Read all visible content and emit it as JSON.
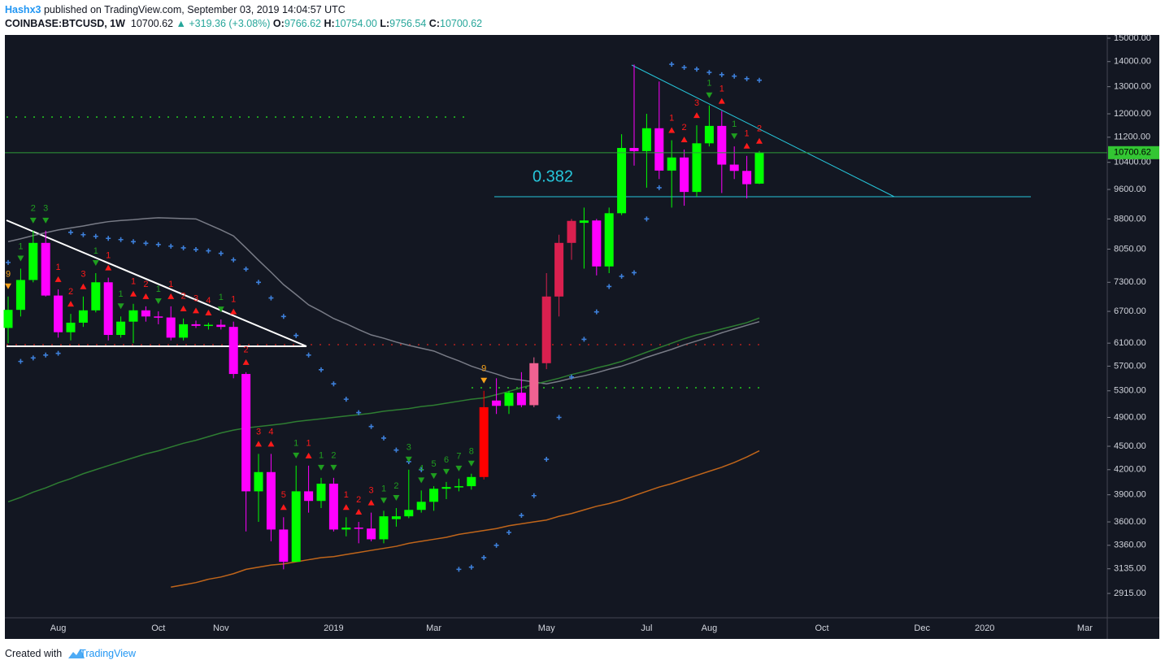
{
  "header": {
    "author": "Hashx3",
    "published": "published on TradingView.com, September 03, 2019 14:04:57 UTC",
    "symbol": "COINBASE:BTCUSD, 1W",
    "last": "10700.62",
    "change": "+319.36 (+3.08%)",
    "o_label": "O:",
    "o": "9766.62",
    "h_label": "H:",
    "h": "10754.00",
    "l_label": "L:",
    "l": "9756.54",
    "c_label": "C:",
    "c": "10700.62"
  },
  "footer": {
    "created": "Created with",
    "brand": "TradingView"
  },
  "chart_data": {
    "type": "candlestick",
    "log_scale": true,
    "grid": false,
    "annotation": "0.382",
    "last_price": 10700.62,
    "categories": [
      null,
      null,
      null,
      null,
      "Aug",
      null,
      null,
      null,
      null,
      null,
      null,
      null,
      "Oct",
      null,
      null,
      null,
      null,
      "Nov",
      null,
      null,
      null,
      null,
      null,
      null,
      null,
      null,
      "2019",
      null,
      null,
      null,
      null,
      null,
      null,
      null,
      "Mar",
      null,
      null,
      null,
      null,
      null,
      null,
      null,
      null,
      "May",
      null,
      null,
      null,
      null,
      null,
      null,
      null,
      "Jul",
      null,
      null,
      null,
      null,
      "Aug",
      null,
      null,
      null,
      null,
      null,
      null,
      null,
      null,
      "Oct",
      null,
      null,
      null,
      null,
      null,
      null,
      null,
      "Dec",
      null,
      null,
      null,
      null,
      "2020",
      null,
      null,
      null,
      null,
      null,
      null,
      null,
      "Mar",
      null
    ],
    "open": [
      6380,
      6730,
      7350,
      8200,
      7020,
      6300,
      6480,
      6720,
      7300,
      6250,
      6500,
      6720,
      6600,
      6580,
      6200,
      6450,
      6420,
      6440,
      6400,
      5570,
      3940,
      4170,
      3520,
      3200,
      3940,
      3830,
      4030,
      3520,
      3540,
      3530,
      3420,
      3630,
      3660,
      3730,
      3820,
      3970,
      3990,
      4000,
      4110,
      5150,
      5070,
      5270,
      5080,
      5750,
      7000,
      8200,
      8700,
      8760,
      7650,
      8950,
      10850,
      10750,
      11500,
      10150,
      10550,
      9530,
      11000,
      11580,
      10330,
      10140,
      9766.62,
      null,
      null,
      null,
      null,
      null,
      null,
      null,
      null,
      null,
      null,
      null,
      null,
      null,
      null,
      null,
      null,
      null,
      null,
      null,
      null,
      null,
      null,
      null,
      null,
      null,
      null,
      null
    ],
    "high": [
      7000,
      7600,
      8500,
      8500,
      7150,
      6650,
      7000,
      7500,
      7400,
      6600,
      6850,
      6800,
      6700,
      6800,
      6560,
      6520,
      6480,
      6540,
      6500,
      5600,
      4400,
      4400,
      3650,
      4250,
      4250,
      4100,
      4100,
      3650,
      3600,
      3700,
      3720,
      3750,
      4200,
      3950,
      4000,
      4050,
      4090,
      4150,
      5300,
      5500,
      5300,
      5600,
      5850,
      7500,
      8400,
      8800,
      9100,
      8800,
      9100,
      11300,
      13880,
      12000,
      13200,
      11100,
      10800,
      11600,
      12300,
      12100,
      10900,
      10600,
      10754,
      null,
      null,
      null,
      null,
      null,
      null,
      null,
      null,
      null,
      null,
      null,
      null,
      null,
      null,
      null,
      null,
      null,
      null,
      null,
      null,
      null,
      null,
      null,
      null,
      null,
      null,
      null
    ],
    "low": [
      6100,
      6600,
      7300,
      7000,
      6200,
      6150,
      6400,
      6680,
      6150,
      6200,
      6100,
      6500,
      6450,
      6150,
      6150,
      6380,
      6350,
      6350,
      5500,
      3500,
      3600,
      3400,
      3130,
      3200,
      3700,
      3750,
      3500,
      3450,
      3380,
      3400,
      3380,
      3550,
      3640,
      3700,
      3720,
      3850,
      3940,
      3960,
      4080,
      4950,
      4950,
      5050,
      5050,
      5650,
      6600,
      7800,
      7600,
      7450,
      7500,
      8900,
      10300,
      9650,
      9900,
      9100,
      9150,
      9400,
      10900,
      9500,
      9900,
      9350,
      9756.54,
      null,
      null,
      null,
      null,
      null,
      null,
      null,
      null,
      null,
      null,
      null,
      null,
      null,
      null,
      null,
      null,
      null,
      null,
      null,
      null,
      null,
      null,
      null,
      null,
      null,
      null,
      null
    ],
    "close": [
      6730,
      7350,
      8200,
      7020,
      6300,
      6480,
      6720,
      7300,
      6250,
      6500,
      6720,
      6600,
      6580,
      6200,
      6450,
      6420,
      6440,
      6400,
      5570,
      3940,
      4170,
      3520,
      3200,
      3940,
      3830,
      4030,
      3520,
      3540,
      3530,
      3420,
      3660,
      3660,
      3730,
      3820,
      3970,
      3990,
      4000,
      4110,
      5050,
      5070,
      5270,
      5080,
      5750,
      7000,
      8200,
      8750,
      8760,
      7650,
      8950,
      10850,
      10750,
      11500,
      10150,
      10550,
      9530,
      11000,
      11580,
      10330,
      10140,
      9750,
      10700.62,
      null,
      null,
      null,
      null,
      null,
      null,
      null,
      null,
      null,
      null,
      null,
      null,
      null,
      null,
      null,
      null,
      null,
      null,
      null,
      null,
      null,
      null,
      null,
      null,
      null,
      null,
      null
    ],
    "candle_colors": [
      "#00ff00",
      "#00ff00",
      "#00ff00",
      "#ff00ff",
      "#ff00ff",
      "#00ff00",
      "#00ff00",
      "#00ff00",
      "#ff00ff",
      "#00ff00",
      "#00ff00",
      "#ff00ff",
      "#ff00ff",
      "#ff00ff",
      "#00ff00",
      "#ff00ff",
      "#00ff00",
      "#ff00ff",
      "#ff00ff",
      "#ff00ff",
      "#00ff00",
      "#ff00ff",
      "#ff00ff",
      "#00ff00",
      "#ff00ff",
      "#00ff00",
      "#ff00ff",
      "#00ff00",
      "#ff00ff",
      "#ff00ff",
      "#00ff00",
      "#00ff00",
      "#00ff00",
      "#00ff00",
      "#00ff00",
      "#00ff00",
      "#00ff00",
      "#00ff00",
      "#ff0000",
      "#ff00ff",
      "#00ff00",
      "#ff00ff",
      "#f06292",
      "#d9204f",
      "#d9204f",
      "#d9204f",
      "#00ff00",
      "#ff00ff",
      "#00ff00",
      "#00ff00",
      "#ff00ff",
      "#00ff00",
      "#ff00ff",
      "#00ff00",
      "#ff00ff",
      "#00ff00",
      "#00ff00",
      "#ff00ff",
      "#ff00ff",
      "#ff00ff",
      "#00ff00",
      null,
      null,
      null,
      null,
      null,
      null,
      null,
      null,
      null,
      null,
      null,
      null,
      null,
      null,
      null,
      null,
      null,
      null,
      null,
      null,
      null,
      null,
      null,
      null,
      null,
      null,
      null
    ],
    "td_labels": [
      "9",
      "1",
      "2",
      "3",
      "1",
      "2",
      "3",
      "1",
      "1",
      "1",
      "1",
      "2",
      "1",
      "1",
      "2",
      "3",
      "4",
      "1",
      "1",
      "2",
      "3",
      "4",
      "5",
      "1",
      "1",
      "1",
      "2",
      "1",
      "2",
      "3",
      "1",
      "2",
      "3",
      "4",
      "5",
      "6",
      "7",
      "8",
      "9",
      null,
      null,
      null,
      null,
      null,
      null,
      null,
      null,
      null,
      null,
      null,
      null,
      null,
      null,
      "1",
      "2",
      "3",
      "1",
      "1",
      "1",
      "1",
      "2",
      null,
      null,
      null,
      null,
      null,
      null,
      null,
      null,
      null,
      null,
      null,
      null,
      null,
      null,
      null,
      null,
      null,
      null,
      null,
      null,
      null,
      null,
      null,
      null,
      null,
      null,
      null
    ],
    "td_colors": [
      "#f7a21b",
      "#1f9e1f",
      "#1f9e1f",
      "#1f9e1f",
      "#ff1a1a",
      "#ff1a1a",
      "#ff1a1a",
      "#1f9e1f",
      "#ff1a1a",
      "#1f9e1f",
      "#ff1a1a",
      "#ff1a1a",
      "#1f9e1f",
      "#ff1a1a",
      "#ff1a1a",
      "#ff1a1a",
      "#ff1a1a",
      "#1f9e1f",
      "#ff1a1a",
      "#ff1a1a",
      "#ff1a1a",
      "#ff1a1a",
      "#ff1a1a",
      "#1f9e1f",
      "#ff1a1a",
      "#1f9e1f",
      "#1f9e1f",
      "#ff1a1a",
      "#ff1a1a",
      "#ff1a1a",
      "#1f9e1f",
      "#1f9e1f",
      "#1f9e1f",
      "#1f9e1f",
      "#1f9e1f",
      "#1f9e1f",
      "#1f9e1f",
      "#1f9e1f",
      "#f7a21b",
      null,
      null,
      null,
      null,
      null,
      null,
      null,
      null,
      null,
      null,
      null,
      null,
      null,
      null,
      "#ff1a1a",
      "#ff1a1a",
      "#ff1a1a",
      "#1f9e1f",
      "#ff1a1a",
      "#1f9e1f",
      "#ff1a1a",
      "#ff1a1a",
      null,
      null,
      null,
      null,
      null,
      null,
      null,
      null,
      null,
      null,
      null,
      null,
      null,
      null,
      null,
      null,
      null,
      null,
      null,
      null,
      null,
      null,
      null,
      null,
      null,
      null,
      null
    ],
    "td_arrows": [
      "down",
      "down",
      "down",
      "down",
      "up",
      "up",
      "up",
      "down",
      "up",
      "down",
      "up",
      "up",
      "down",
      "up",
      "up",
      "up",
      "up",
      "down",
      "up",
      "up",
      "up",
      "up",
      "up",
      "down",
      "up",
      "down",
      "down",
      "up",
      "up",
      "up",
      "down",
      "down",
      "down",
      "down",
      "down",
      "down",
      "down",
      "down",
      "down",
      null,
      null,
      null,
      null,
      null,
      null,
      null,
      null,
      null,
      null,
      null,
      null,
      null,
      null,
      "up",
      "up",
      "up",
      "down",
      "up",
      "down",
      "up",
      "up",
      null,
      null,
      null,
      null,
      null,
      null,
      null,
      null,
      null,
      null,
      null,
      null,
      null,
      null,
      null,
      null,
      null,
      null,
      null,
      null,
      null,
      null,
      null,
      null,
      null,
      null,
      null
    ],
    "overlays": [
      {
        "color": "#787b86",
        "values": [
          8230,
          8300,
          8380,
          8450,
          8520,
          8570,
          8620,
          8680,
          8730,
          8760,
          8780,
          8810,
          8830,
          8820,
          8810,
          8800,
          8660,
          8520,
          8370,
          8080,
          7790,
          7520,
          7250,
          7040,
          6830,
          6700,
          6560,
          6460,
          6350,
          6250,
          6190,
          6120,
          6060,
          6010,
          5960,
          5870,
          5790,
          5700,
          5630,
          5570,
          5500,
          5470,
          5440,
          5410,
          5450,
          5500,
          5540,
          5590,
          5650,
          5700,
          5770,
          5850,
          5920,
          5990,
          6070,
          6140,
          6210,
          6290,
          6360,
          6430,
          6500,
          null,
          null,
          null,
          null,
          null,
          null,
          null,
          null,
          null,
          null,
          null,
          null,
          null,
          null,
          null,
          null,
          null,
          null,
          null,
          null,
          null,
          null,
          null,
          null,
          null,
          null,
          null
        ]
      },
      {
        "color": "#2e7d32",
        "values": [
          3820,
          3870,
          3930,
          3980,
          4040,
          4090,
          4150,
          4200,
          4250,
          4300,
          4350,
          4400,
          4440,
          4490,
          4540,
          4580,
          4630,
          4680,
          4720,
          4750,
          4770,
          4790,
          4810,
          4840,
          4860,
          4880,
          4900,
          4920,
          4940,
          4960,
          4990,
          5010,
          5030,
          5060,
          5080,
          5110,
          5140,
          5170,
          5190,
          5240,
          5290,
          5350,
          5400,
          5450,
          5500,
          5560,
          5610,
          5670,
          5720,
          5780,
          5860,
          5940,
          6020,
          6100,
          6180,
          6250,
          6300,
          6360,
          6420,
          6480,
          6570,
          null,
          null,
          null,
          null,
          null,
          null,
          null,
          null,
          null,
          null,
          null,
          null,
          null,
          null,
          null,
          null,
          null,
          null,
          null,
          null,
          null,
          null,
          null,
          null,
          null,
          null,
          null
        ]
      },
      {
        "color": "#c0651a",
        "values": [
          null,
          null,
          null,
          null,
          null,
          null,
          null,
          null,
          null,
          null,
          null,
          null,
          null,
          2970,
          2990,
          3010,
          3040,
          3060,
          3090,
          3130,
          3150,
          3170,
          3180,
          3200,
          3220,
          3240,
          3250,
          3270,
          3290,
          3310,
          3330,
          3350,
          3380,
          3400,
          3420,
          3440,
          3470,
          3490,
          3510,
          3530,
          3560,
          3580,
          3600,
          3620,
          3660,
          3690,
          3730,
          3770,
          3800,
          3840,
          3890,
          3940,
          3990,
          4030,
          4080,
          4130,
          4180,
          4230,
          4290,
          4360,
          4440,
          null,
          null,
          null,
          null,
          null,
          null,
          null,
          null,
          null,
          null,
          null,
          null,
          null,
          null,
          null,
          null,
          null,
          null,
          null,
          null,
          null,
          null,
          null,
          null,
          null,
          null,
          null
        ]
      }
    ],
    "sar": {
      "color": "#3d7fd9",
      "values": [
        7740,
        5780,
        5840,
        5890,
        5920,
        8460,
        8400,
        8360,
        8310,
        8280,
        8230,
        8190,
        8160,
        8120,
        8080,
        8040,
        8010,
        7950,
        7800,
        7590,
        7300,
        6970,
        6600,
        6240,
        5890,
        5640,
        5410,
        5170,
        4970,
        4770,
        4610,
        4450,
        4300,
        4200,
        null,
        null,
        3130,
        3150,
        3240,
        3360,
        3490,
        3670,
        3890,
        4330,
        4900,
        5520,
        6170,
        6690,
        7210,
        7430,
        7510,
        8800,
        9650,
        13890,
        13760,
        13690,
        13560,
        13470,
        13410,
        13310,
        13250,
        null,
        null,
        null,
        null,
        null,
        null,
        null,
        null,
        null,
        null,
        null,
        null,
        null,
        null,
        null,
        null,
        null,
        null,
        null,
        null,
        null,
        null,
        null,
        null,
        null,
        null,
        null
      ]
    },
    "ylim": [
      2713,
      15144
    ],
    "yticks": [
      {
        "value": 15000,
        "label": "15000.00"
      },
      {
        "value": 14000,
        "label": "14000.00"
      },
      {
        "value": 13000,
        "label": "13000.00"
      },
      {
        "value": 12000,
        "label": "12000.00"
      },
      {
        "value": 11200,
        "label": "11200.00"
      },
      {
        "value": 10400,
        "label": "10400.00"
      },
      {
        "value": 9600,
        "label": "9600.00"
      },
      {
        "value": 8800,
        "label": "8800.00"
      },
      {
        "value": 8050,
        "label": "8050.00"
      },
      {
        "value": 7300,
        "label": "7300.00"
      },
      {
        "value": 6700,
        "label": "6700.00"
      },
      {
        "value": 6100,
        "label": "6100.00"
      },
      {
        "value": 5700,
        "label": "5700.00"
      },
      {
        "value": 5300,
        "label": "5300.00"
      },
      {
        "value": 4900,
        "label": "4900.00"
      },
      {
        "value": 4500,
        "label": "4500.00"
      },
      {
        "value": 4200,
        "label": "4200.00"
      },
      {
        "value": 3900,
        "label": "3900.00"
      },
      {
        "value": 3600,
        "label": "3600.00"
      },
      {
        "value": 3360,
        "label": "3360.00"
      },
      {
        "value": 3135,
        "label": "3135.00"
      },
      {
        "value": 2915,
        "label": "2915.00"
      }
    ]
  }
}
